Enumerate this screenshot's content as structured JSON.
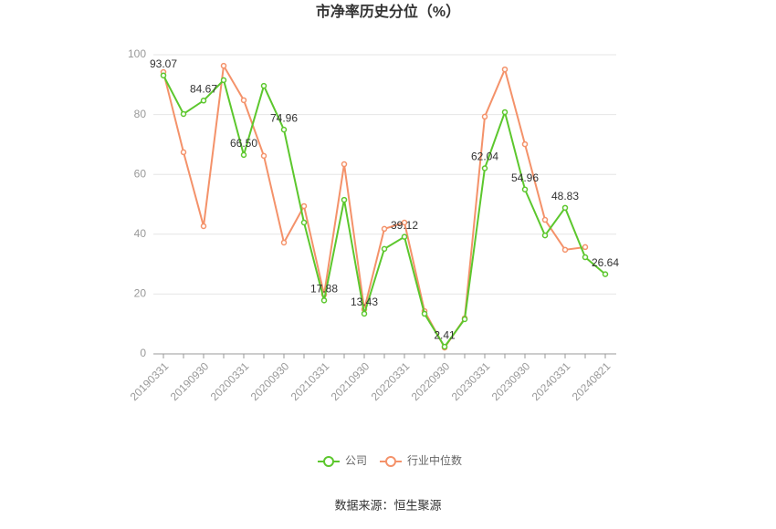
{
  "chart_data": {
    "type": "line",
    "title": "市净率历史分位（%）",
    "source": "数据来源：恒生聚源",
    "categories": [
      "20190331",
      null,
      "20190930",
      null,
      "20200331",
      null,
      "20200930",
      null,
      "20210331",
      null,
      "20210930",
      null,
      "20220331",
      null,
      "20220930",
      null,
      "20230331",
      null,
      "20230930",
      null,
      "20240331",
      null,
      "20240821"
    ],
    "series": [
      {
        "name": "公司",
        "color": "#5cc72d",
        "values": [
          93.07,
          80.2,
          84.67,
          91.5,
          66.5,
          89.6,
          74.96,
          43.9,
          17.88,
          51.5,
          13.43,
          35.1,
          39.12,
          13.4,
          2.41,
          11.6,
          62.04,
          80.8,
          54.96,
          39.6,
          48.83,
          32.3,
          26.64
        ],
        "value_labels": [
          "93.07",
          null,
          "84.67",
          null,
          "66.50",
          null,
          "74.96",
          null,
          "17.88",
          null,
          "13.43",
          null,
          "39.12",
          null,
          "2.41",
          null,
          "62.04",
          null,
          "54.96",
          null,
          "48.83",
          null,
          "26.64"
        ]
      },
      {
        "name": "行业中位数",
        "color": "#f4926a",
        "values": [
          94.2,
          67.4,
          42.7,
          96.3,
          84.8,
          66.2,
          37.2,
          49.4,
          19.8,
          63.4,
          14.9,
          41.8,
          43.9,
          14.3,
          2.1,
          11.9,
          79.3,
          95.1,
          70.1,
          44.8,
          34.8,
          35.7,
          null
        ]
      }
    ],
    "ylim": [
      0,
      100
    ],
    "yticks": [
      0,
      20,
      40,
      60,
      80,
      100
    ],
    "grid": true
  }
}
